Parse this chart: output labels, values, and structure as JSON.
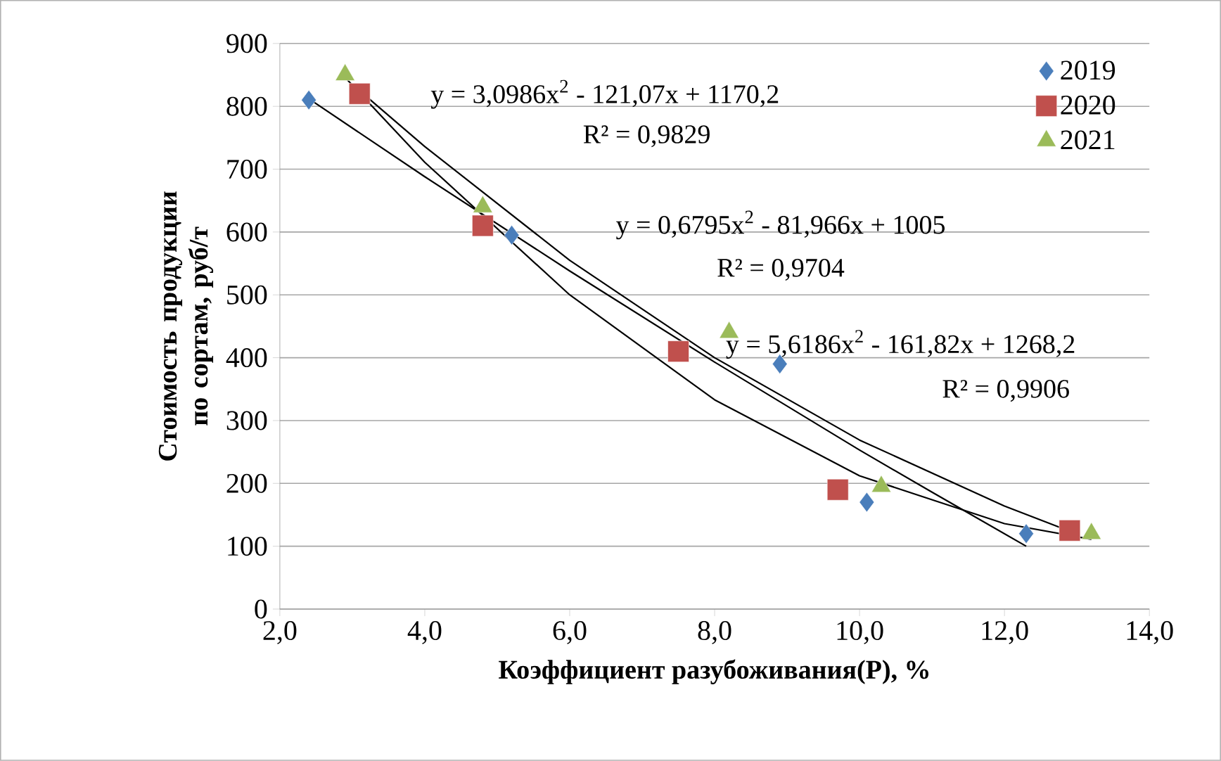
{
  "chart_data": {
    "type": "scatter",
    "xlabel": "Коэффициент разубоживания(P), %",
    "ylabel": "Стоимость продукции по сортам, руб/т",
    "xlim": [
      2,
      14
    ],
    "xticks": [
      {
        "value": 2,
        "label": "2,0"
      },
      {
        "value": 4,
        "label": "4,0"
      },
      {
        "value": 6,
        "label": "6,0"
      },
      {
        "value": 8,
        "label": "8,0"
      },
      {
        "value": 10,
        "label": "10,0"
      },
      {
        "value": 12,
        "label": "12,0"
      },
      {
        "value": 14,
        "label": "14,0"
      }
    ],
    "ylim": [
      0,
      900
    ],
    "yticks": [
      0,
      100,
      200,
      300,
      400,
      500,
      600,
      700,
      800,
      900
    ],
    "grid": "y",
    "legend": "top right",
    "series": [
      {
        "name": "2019",
        "color": "#4a7ebb",
        "marker": "diamond",
        "x": [
          2.4,
          5.2,
          8.9,
          10.1,
          12.3
        ],
        "values": [
          810,
          595,
          390,
          170,
          120
        ]
      },
      {
        "name": "2020",
        "color": "#c0504d",
        "marker": "square",
        "x": [
          3.1,
          4.8,
          7.5,
          9.7,
          12.9
        ],
        "values": [
          820,
          610,
          410,
          190,
          125
        ]
      },
      {
        "name": "2021",
        "color": "#9bbb59",
        "marker": "triangle",
        "x": [
          2.9,
          4.8,
          8.2,
          10.3,
          13.2
        ],
        "values": [
          850,
          640,
          440,
          195,
          120
        ]
      },
      {
        "type": "line",
        "color": "#000000",
        "marker": "none",
        "x": [
          2.4,
          4,
          6,
          8,
          10,
          11,
          12.3
        ],
        "values": [
          812,
          688,
          538,
          393,
          253,
          186,
          100
        ]
      },
      {
        "type": "line",
        "color": "#000000",
        "marker": "none",
        "x": [
          3.1,
          4,
          6,
          8,
          10,
          12,
          12.9
        ],
        "values": [
          825,
          736,
          555,
          400,
          269,
          164,
          124
        ]
      },
      {
        "type": "line",
        "color": "#000000",
        "marker": "none",
        "x": [
          2.9,
          4,
          6,
          8,
          10,
          12,
          13.2
        ],
        "values": [
          846,
          711,
          500,
          333,
          212,
          136,
          111
        ]
      }
    ],
    "annotations": [
      "y = 3,0986x$^{2}$ - 121,07x + 1170,2",
      "R² = 0,9829",
      "y = 0,6795x$^{2}$ - 81,966x + 1005",
      "R² = 0,9704",
      "y = 5,6186x$^{2}$ - 161,82x + 1268,2",
      "R² = 0,9906"
    ]
  }
}
